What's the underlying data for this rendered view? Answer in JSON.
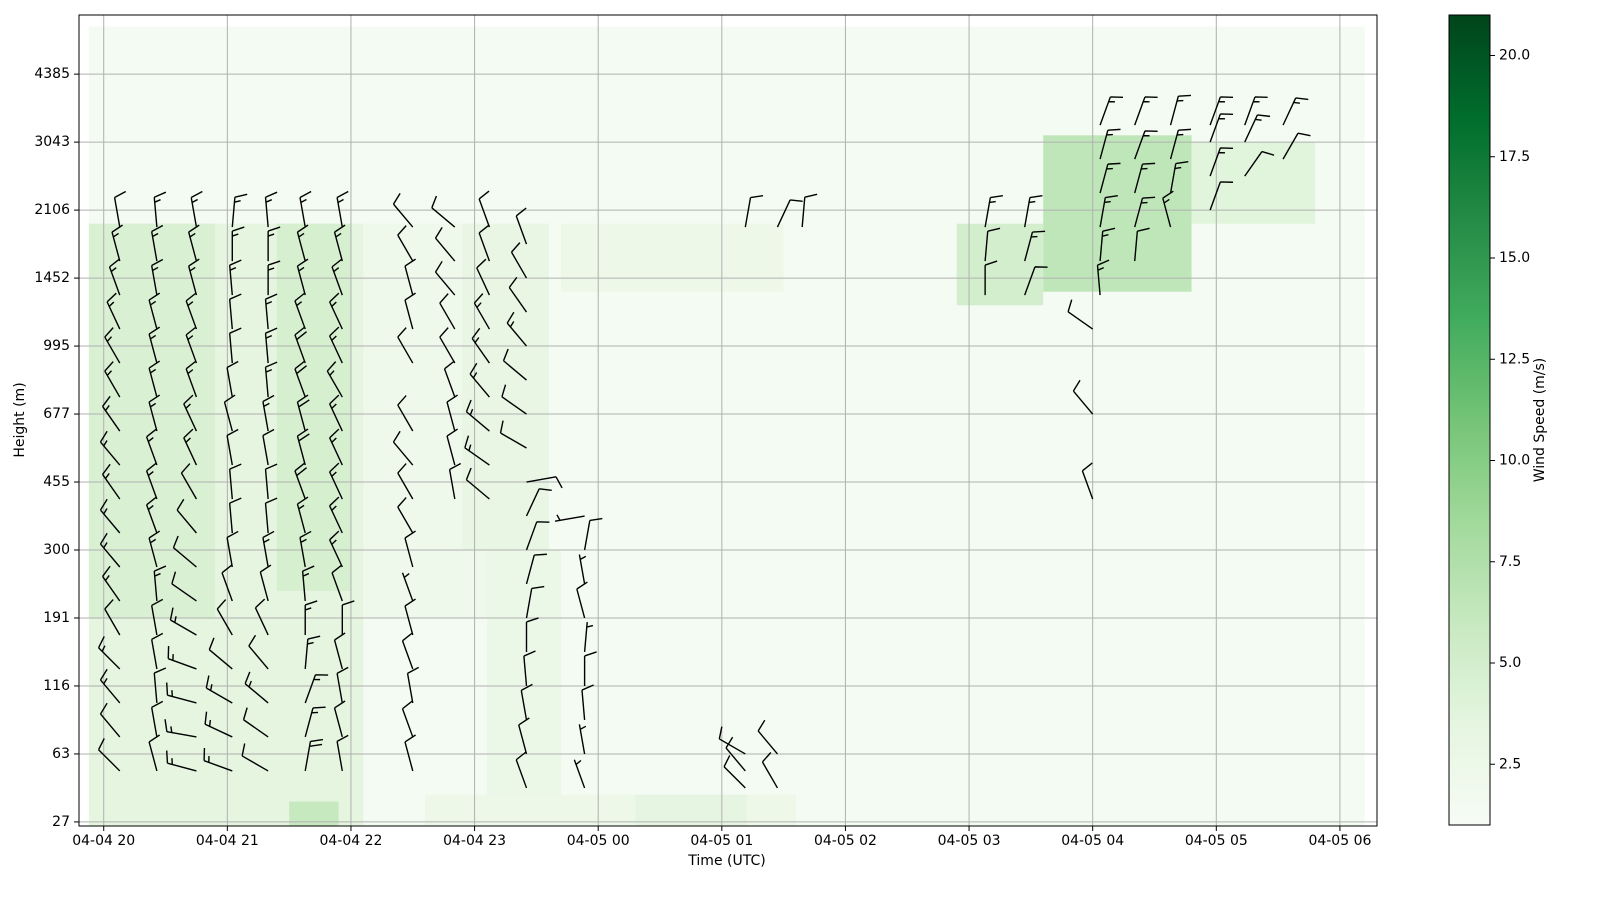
{
  "chart_data": {
    "type": "heatmap",
    "xlabel": "Time (UTC)",
    "ylabel": "Height (m)",
    "colorbar_label": "Wind Speed (m/s)",
    "grid": true,
    "barb_color": "#000000",
    "xlim": [
      -0.2,
      10.3
    ],
    "xticks": [
      {
        "value": 0,
        "label": "04-04 20"
      },
      {
        "value": 1,
        "label": "04-04 21"
      },
      {
        "value": 2,
        "label": "04-04 22"
      },
      {
        "value": 3,
        "label": "04-04 23"
      },
      {
        "value": 4,
        "label": "04-05 00"
      },
      {
        "value": 5,
        "label": "04-05 01"
      },
      {
        "value": 6,
        "label": "04-05 02"
      },
      {
        "value": 7,
        "label": "04-05 03"
      },
      {
        "value": 8,
        "label": "04-05 04"
      },
      {
        "value": 9,
        "label": "04-05 05"
      },
      {
        "value": 10,
        "label": "04-05 06"
      }
    ],
    "ylim": [
      -0.06,
      11.87
    ],
    "yticks": [
      {
        "value": 0,
        "label": "27"
      },
      {
        "value": 1,
        "label": "63"
      },
      {
        "value": 2,
        "label": "116"
      },
      {
        "value": 3,
        "label": "191"
      },
      {
        "value": 4,
        "label": "300"
      },
      {
        "value": 5,
        "label": "455"
      },
      {
        "value": 6,
        "label": "677"
      },
      {
        "value": 7,
        "label": "995"
      },
      {
        "value": 8,
        "label": "1452"
      },
      {
        "value": 9,
        "label": "2106"
      },
      {
        "value": 10,
        "label": "3043"
      },
      {
        "value": 11,
        "label": "4385"
      }
    ],
    "colorbar": {
      "lim": [
        1,
        21
      ],
      "ticks": [
        2.5,
        {
          "value": 5,
          "label": "5.0"
        },
        7.5,
        {
          "value": 10,
          "label": "10.0"
        },
        12.5,
        {
          "value": 15,
          "label": "15.0"
        },
        17.5,
        {
          "value": 20,
          "label": "20.0"
        }
      ],
      "colors": [
        "#f7fcf5",
        "#e5f5e0",
        "#c7e9c0",
        "#a1d99b",
        "#74c476",
        "#41ab5d",
        "#238b45",
        "#006d2c",
        "#00441b"
      ]
    },
    "heatmap": [
      {
        "t": [
          -0.12,
          10.2
        ],
        "levels": [
          -0.4,
          11.7
        ],
        "speed": 1.4
      },
      {
        "t": [
          -0.12,
          2.1
        ],
        "levels": [
          -0.4,
          8.8
        ],
        "speed": 3.5
      },
      {
        "t": [
          -0.12,
          0.9
        ],
        "levels": [
          3.0,
          8.8
        ],
        "speed": 4.5
      },
      {
        "t": [
          1.4,
          2.0
        ],
        "levels": [
          3.4,
          8.8
        ],
        "speed": 4.8
      },
      {
        "t": [
          1.5,
          1.9
        ],
        "levels": [
          -0.4,
          0.3
        ],
        "speed": 6.0
      },
      {
        "t": [
          2.1,
          3.6
        ],
        "levels": [
          3.0,
          8.8
        ],
        "speed": 2.2
      },
      {
        "t": [
          2.9,
          3.6
        ],
        "levels": [
          4.0,
          8.8
        ],
        "speed": 3.0
      },
      {
        "t": [
          3.1,
          3.7
        ],
        "levels": [
          -0.4,
          4.0
        ],
        "speed": 2.6
      },
      {
        "t": [
          3.7,
          5.5
        ],
        "levels": [
          7.8,
          8.8
        ],
        "speed": 2.4
      },
      {
        "t": [
          2.6,
          5.6
        ],
        "levels": [
          -0.4,
          0.4
        ],
        "speed": 2.4
      },
      {
        "t": [
          4.3,
          5.2
        ],
        "levels": [
          -0.4,
          0.4
        ],
        "speed": 3.4
      },
      {
        "t": [
          6.9,
          7.6
        ],
        "levels": [
          7.6,
          8.8
        ],
        "speed": 5.0
      },
      {
        "t": [
          7.6,
          8.8
        ],
        "levels": [
          7.8,
          10.1
        ],
        "speed": 6.5
      },
      {
        "t": [
          8.8,
          9.8
        ],
        "levels": [
          8.8,
          10.0
        ],
        "speed": 3.8
      }
    ],
    "barbs": [
      {
        "t": 0.13,
        "levels": [
          0.75,
          1.25,
          1.75,
          2.25,
          2.75,
          3.25,
          3.75,
          4.25,
          4.75,
          5.25,
          5.75,
          6.25,
          6.75,
          7.25,
          7.75,
          8.25,
          8.75
        ],
        "speed": [
          6,
          6,
          7,
          7,
          6,
          7,
          7,
          8,
          8,
          8,
          8,
          8,
          8,
          7,
          7,
          7,
          6
        ],
        "dir": [
          315,
          320,
          320,
          315,
          330,
          325,
          320,
          320,
          325,
          320,
          325,
          330,
          330,
          335,
          340,
          345,
          350
        ]
      },
      {
        "t": 0.43,
        "levels": [
          0.75,
          1.25,
          1.75,
          2.25,
          2.75,
          3.25,
          3.75,
          4.25,
          4.75,
          5.25,
          5.75,
          6.25,
          6.75,
          7.25,
          7.75,
          8.25,
          8.75
        ],
        "speed": [
          5,
          5,
          6,
          5,
          6,
          7,
          7,
          7,
          8,
          8,
          8,
          8,
          8,
          7,
          7,
          7,
          7
        ],
        "dir": [
          345,
          350,
          355,
          350,
          350,
          355,
          345,
          340,
          340,
          340,
          345,
          345,
          345,
          345,
          350,
          350,
          355
        ]
      },
      {
        "t": 0.75,
        "levels": [
          0.75,
          1.25,
          1.75,
          2.25,
          2.75,
          3.25,
          3.75,
          4.25,
          4.75,
          5.25,
          5.75,
          6.25,
          6.75,
          7.25,
          7.75,
          8.25,
          8.75
        ],
        "speed": [
          7,
          8,
          8,
          7,
          7,
          6,
          6,
          6,
          6,
          7,
          7,
          7,
          7,
          7,
          8,
          8,
          8
        ],
        "dir": [
          285,
          280,
          285,
          290,
          300,
          305,
          310,
          320,
          330,
          335,
          335,
          340,
          340,
          340,
          345,
          345,
          350
        ]
      },
      {
        "t": 1.04,
        "levels": [
          0.75,
          1.25,
          1.75,
          2.25,
          2.75,
          3.25,
          3.75,
          4.25,
          4.75,
          5.25,
          5.75,
          6.25,
          6.75,
          7.25,
          7.75,
          8.25,
          8.75
        ],
        "speed": [
          7,
          8,
          7,
          6,
          5,
          5,
          5,
          6,
          6,
          6,
          6,
          6,
          6,
          6,
          7,
          7,
          8
        ],
        "dir": [
          290,
          295,
          300,
          310,
          330,
          340,
          350,
          355,
          355,
          350,
          345,
          350,
          355,
          355,
          355,
          0,
          5
        ]
      },
      {
        "t": 1.33,
        "levels": [
          0.75,
          1.25,
          1.75,
          2.25,
          2.75,
          3.25,
          3.75,
          4.25,
          4.75,
          5.25,
          5.75,
          6.25,
          6.75,
          7.25,
          7.75,
          8.25,
          8.75
        ],
        "speed": [
          6,
          6,
          7,
          6,
          6,
          6,
          7,
          6,
          6,
          6,
          7,
          7,
          7,
          7,
          7,
          7,
          7
        ],
        "dir": [
          300,
          305,
          310,
          320,
          335,
          345,
          350,
          355,
          355,
          350,
          350,
          355,
          355,
          355,
          0,
          0,
          355
        ]
      },
      {
        "t": 1.63,
        "levels": [
          0.75,
          1.25,
          1.75,
          2.25,
          2.75,
          3.25,
          3.75,
          4.25,
          4.75,
          5.25,
          5.75,
          6.25,
          6.75,
          7.25,
          7.75,
          8.25,
          8.75
        ],
        "speed": [
          9,
          8,
          8,
          7,
          7,
          7,
          8,
          8,
          9,
          9,
          9,
          9,
          9,
          8,
          8,
          8,
          8
        ],
        "dir": [
          10,
          15,
          20,
          5,
          0,
          355,
          350,
          345,
          340,
          345,
          345,
          340,
          340,
          340,
          345,
          345,
          350
        ]
      },
      {
        "t": 1.93,
        "levels": [
          0.75,
          1.25,
          1.75,
          2.25,
          2.75,
          3.25,
          3.75,
          4.25,
          4.75,
          5.25,
          5.75,
          6.25,
          6.75,
          7.25,
          7.75,
          8.25,
          8.75
        ],
        "speed": [
          5,
          5,
          5,
          5,
          5,
          6,
          7,
          7,
          8,
          8,
          8,
          8,
          8,
          8,
          8,
          7,
          7
        ],
        "dir": [
          350,
          345,
          350,
          345,
          0,
          340,
          335,
          335,
          335,
          335,
          335,
          330,
          335,
          335,
          340,
          345,
          350
        ]
      },
      {
        "t": 2.5,
        "levels": [
          0.75,
          1.25,
          1.75,
          2.25,
          2.75,
          3.25,
          3.75,
          4.25,
          4.75,
          5.25,
          5.75,
          6.75,
          7.25,
          7.75,
          8.25,
          8.75
        ],
        "speed": [
          4,
          4,
          4,
          4,
          4,
          3,
          4,
          4,
          4,
          5,
          5,
          5,
          5,
          6,
          6,
          6
        ],
        "dir": [
          345,
          340,
          350,
          340,
          345,
          340,
          345,
          330,
          330,
          320,
          330,
          330,
          345,
          345,
          330,
          320
        ]
      },
      {
        "t": 2.84,
        "levels": [
          4.75,
          5.25,
          5.75,
          6.25,
          6.75,
          7.25,
          7.75,
          8.25,
          8.75
        ],
        "speed": [
          4,
          5,
          5,
          6,
          6,
          6,
          6,
          6,
          6
        ],
        "dir": [
          350,
          345,
          345,
          340,
          330,
          330,
          320,
          320,
          310
        ]
      },
      {
        "t": 3.12,
        "levels": [
          4.75,
          5.25,
          5.75,
          6.25,
          6.75,
          7.25,
          7.75,
          8.25,
          8.75
        ],
        "speed": [
          6,
          7,
          7,
          7,
          7,
          7,
          6,
          6,
          6
        ],
        "dir": [
          310,
          305,
          310,
          320,
          325,
          330,
          335,
          340,
          340
        ]
      },
      {
        "t": 3.42,
        "levels": [
          0.5,
          1,
          1.5,
          2,
          2.5,
          3,
          3.5,
          4,
          4.5,
          5,
          5.5,
          6,
          6.5,
          7,
          7.5,
          8,
          8.5
        ],
        "speed": [
          4,
          4,
          5,
          5,
          5,
          5,
          4,
          4,
          4,
          4,
          5,
          6,
          6,
          7,
          6,
          6,
          5
        ],
        "dir": [
          340,
          345,
          350,
          355,
          0,
          10,
          15,
          20,
          25,
          80,
          300,
          305,
          310,
          320,
          325,
          330,
          340
        ]
      },
      {
        "t": 3.89,
        "levels": [
          0.5,
          1,
          1.5,
          2,
          2.5,
          3,
          3.5,
          4,
          4.5
        ],
        "speed": [
          3,
          3,
          4,
          4,
          3,
          4,
          3,
          4,
          3
        ],
        "dir": [
          340,
          350,
          355,
          0,
          5,
          345,
          350,
          10,
          260
        ]
      },
      {
        "t": 5.19,
        "levels": [
          0.5,
          0.75,
          1,
          8.75
        ],
        "speed": [
          5,
          5,
          4,
          4
        ],
        "dir": [
          315,
          320,
          300,
          10
        ]
      },
      {
        "t": 5.45,
        "levels": [
          0.5,
          1,
          8.75
        ],
        "speed": [
          4,
          5,
          5
        ],
        "dir": [
          330,
          320,
          25
        ]
      },
      {
        "t": 5.65,
        "levels": [
          8.75
        ],
        "speed": [
          4
        ],
        "dir": [
          5
        ]
      },
      {
        "t": 7.13,
        "levels": [
          7.75,
          8.25,
          8.75
        ],
        "speed": [
          6,
          6,
          7
        ],
        "dir": [
          0,
          5,
          10
        ]
      },
      {
        "t": 7.45,
        "levels": [
          7.75,
          8.25,
          8.75
        ],
        "speed": [
          6,
          7,
          7
        ],
        "dir": [
          20,
          15,
          10
        ]
      },
      {
        "t": 8.0,
        "levels": [
          4.75,
          6.0,
          7.25
        ],
        "speed": [
          5,
          4,
          4
        ],
        "dir": [
          340,
          320,
          305
        ]
      },
      {
        "t": 8.06,
        "levels": [
          7.75,
          8.25,
          8.75,
          9.25,
          9.75,
          10.25
        ],
        "speed": [
          7,
          7,
          8,
          8,
          8,
          8
        ],
        "dir": [
          355,
          5,
          10,
          15,
          15,
          20
        ]
      },
      {
        "t": 8.34,
        "levels": [
          8.25,
          8.75,
          9.25,
          9.75,
          10.25
        ],
        "speed": [
          6,
          7,
          8,
          8,
          8
        ],
        "dir": [
          5,
          15,
          15,
          20,
          20
        ]
      },
      {
        "t": 8.63,
        "levels": [
          8.75,
          9.25,
          9.75,
          10.25
        ],
        "speed": [
          7,
          8,
          8,
          8
        ],
        "dir": [
          345,
          10,
          15,
          15
        ]
      },
      {
        "t": 8.95,
        "levels": [
          9.0,
          9.5,
          10.0,
          10.25
        ],
        "speed": [
          6,
          7,
          7,
          8
        ],
        "dir": [
          20,
          20,
          20,
          20
        ]
      },
      {
        "t": 9.23,
        "levels": [
          9.5,
          10.0,
          10.25
        ],
        "speed": [
          6,
          7,
          7
        ],
        "dir": [
          35,
          25,
          20
        ]
      },
      {
        "t": 9.54,
        "levels": [
          9.75,
          10.25
        ],
        "speed": [
          6,
          7
        ],
        "dir": [
          30,
          25
        ]
      }
    ]
  }
}
